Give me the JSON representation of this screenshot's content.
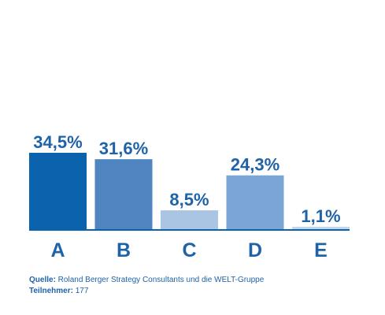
{
  "chart_data": {
    "type": "bar",
    "categories": [
      "A",
      "B",
      "C",
      "D",
      "E"
    ],
    "values": [
      34.5,
      31.6,
      8.5,
      24.3,
      1.1
    ],
    "value_labels": [
      "34,5%",
      "31,6%",
      "8,5%",
      "24,3%",
      "1,1%"
    ],
    "colors": [
      "#0b63ae",
      "#4f86c2",
      "#a9c5e3",
      "#7aa5d4",
      "#c2d6ec"
    ],
    "ylim": [
      0,
      34.5
    ],
    "grid": false,
    "title": "",
    "xlabel": "",
    "ylabel": ""
  },
  "footer": {
    "source_key": "Quelle:",
    "source_value": " Roland Berger Strategy Consultants und die WELT-Gruppe",
    "participants_key": "Teilnehmer:",
    "participants_value": " 177"
  },
  "theme": {
    "text_color": "#1e63a8",
    "axis_color": "#0b63ae"
  }
}
